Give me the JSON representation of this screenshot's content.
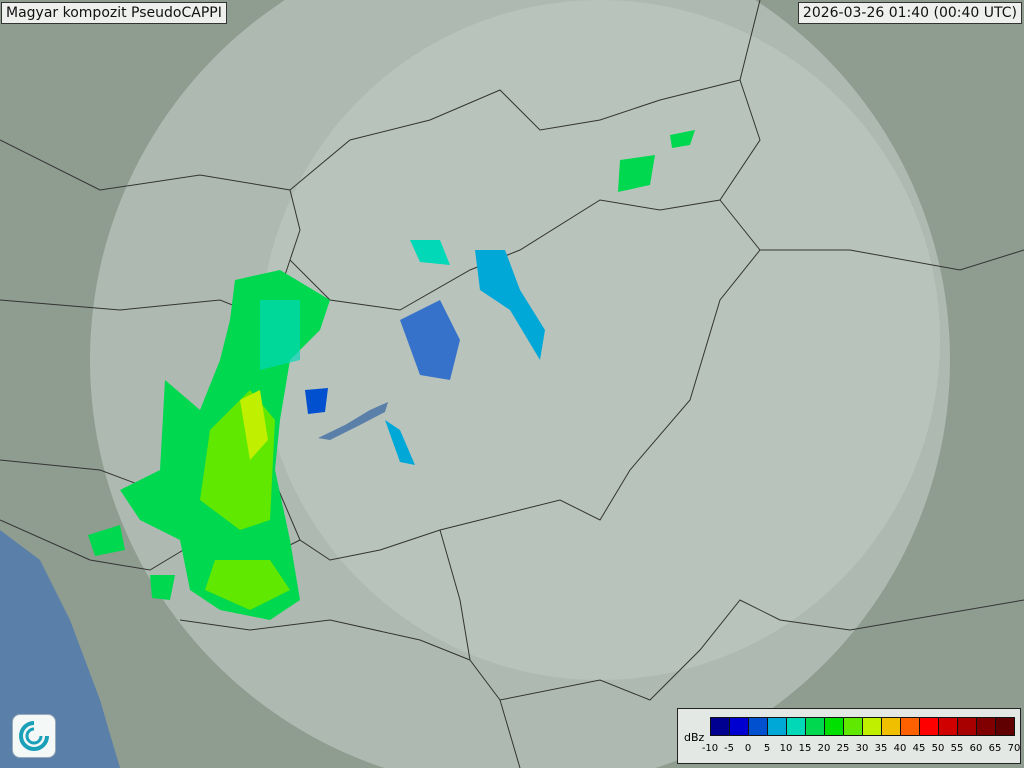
{
  "title": "Magyar kompozit  PseudoCAPPI",
  "timestamp": "2026-03-26 01:40 (00:40 UTC)",
  "legend": {
    "unit": "dBz",
    "ticks": [
      "-10",
      "-5",
      "0",
      "5",
      "10",
      "15",
      "20",
      "25",
      "30",
      "35",
      "40",
      "45",
      "50",
      "55",
      "60",
      "65",
      "70"
    ],
    "colors": [
      "#000090",
      "#0000d0",
      "#0050d0",
      "#00a8d8",
      "#00d8b8",
      "#00d850",
      "#00e000",
      "#60e800",
      "#c0f000",
      "#f0c000",
      "#ff6000",
      "#ff0000",
      "#d00000",
      "#a80000",
      "#800000",
      "#600000"
    ]
  },
  "colors": {
    "terrain": "#8d9a8e",
    "coverage": "#c8d4cc",
    "border": "#333333",
    "water": "#5a7fa8",
    "rain_light": "#00d850",
    "rain_medium": "#60e800",
    "rain_strong": "#c0f000"
  },
  "logo": {
    "icon": "swirl-logo-icon"
  }
}
